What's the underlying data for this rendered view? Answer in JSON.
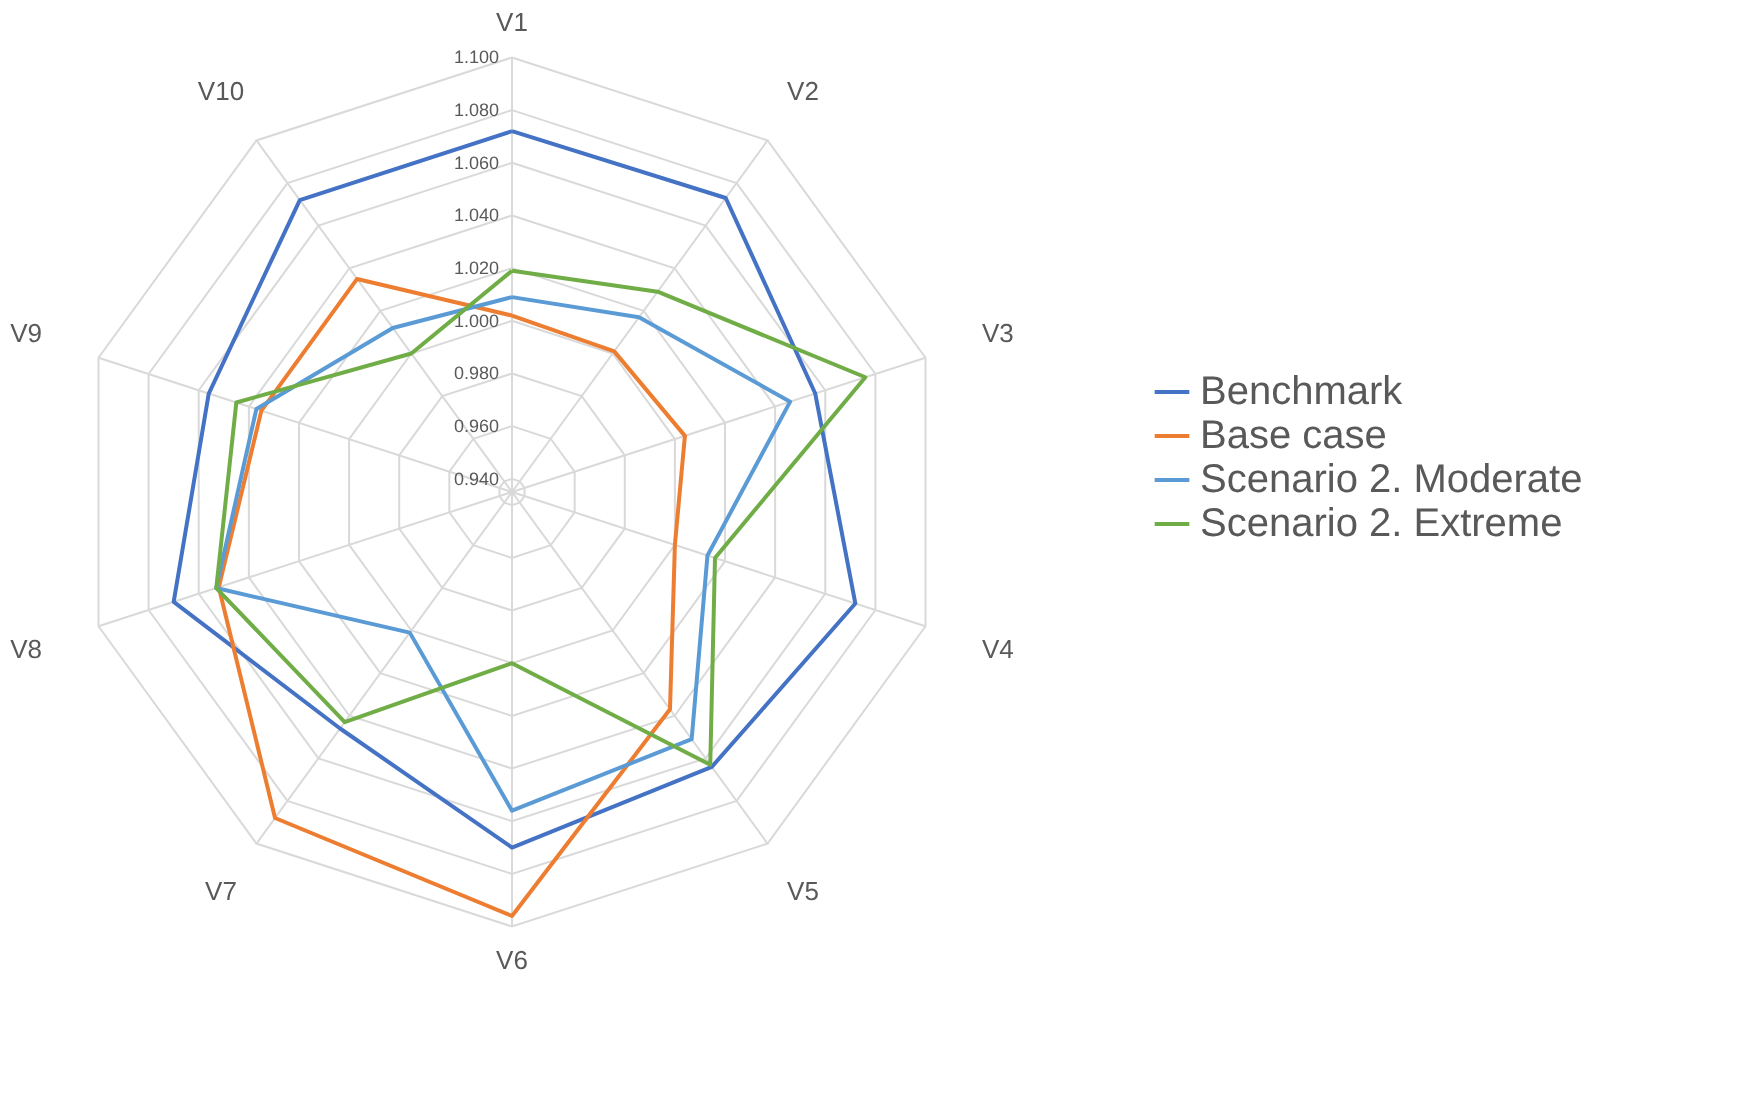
{
  "chart_data": {
    "type": "radar",
    "categories": [
      "V1",
      "V2",
      "V3",
      "V4",
      "V5",
      "V6",
      "V7",
      "V8",
      "V9",
      "V10"
    ],
    "ylim": [
      0.935,
      1.1
    ],
    "yticks": [
      {
        "value": 0.94,
        "label": "0.940"
      },
      {
        "value": 0.96,
        "label": "0.960"
      },
      {
        "value": 0.98,
        "label": "0.980"
      },
      {
        "value": 1.0,
        "label": "1.000"
      },
      {
        "value": 1.02,
        "label": "1.020"
      },
      {
        "value": 1.04,
        "label": "1.040"
      },
      {
        "value": 1.06,
        "label": "1.060"
      },
      {
        "value": 1.08,
        "label": "1.080"
      },
      {
        "value": 1.1,
        "label": "1.100"
      }
    ],
    "grid": true,
    "legend": "right",
    "series": [
      {
        "name": "Benchmark",
        "color": "#4472c4",
        "values": [
          1.072,
          1.073,
          1.056,
          1.072,
          1.064,
          1.07,
          1.046,
          1.07,
          1.056,
          1.072
        ]
      },
      {
        "name": "Base case",
        "color": "#ed7d31",
        "values": [
          1.002,
          1.001,
          1.004,
          1.0,
          1.037,
          1.096,
          1.088,
          1.052,
          1.035,
          1.035
        ]
      },
      {
        "name": "Scenario 2. Moderate",
        "color": "#5b9bd5",
        "values": [
          1.009,
          1.017,
          1.046,
          1.013,
          1.051,
          1.056,
          1.001,
          1.053,
          1.037,
          1.012
        ]
      },
      {
        "name": "Scenario 2. Extreme",
        "color": "#70ad47",
        "values": [
          1.019,
          1.029,
          1.076,
          1.016,
          1.063,
          1.0,
          1.043,
          1.053,
          1.045,
          1.0
        ]
      }
    ]
  }
}
